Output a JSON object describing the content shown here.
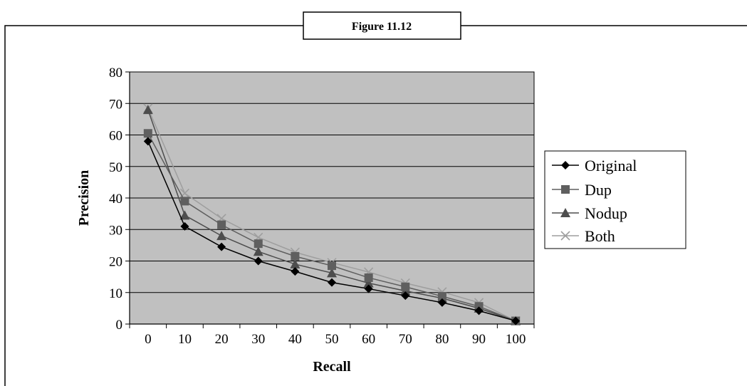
{
  "figure": {
    "caption": "Figure 11.12"
  },
  "chart_data": {
    "type": "line",
    "title": "",
    "xlabel": "Recall",
    "ylabel": "Precision",
    "x": [
      0,
      10,
      20,
      30,
      40,
      50,
      60,
      70,
      80,
      90,
      100
    ],
    "ylim": [
      0,
      80
    ],
    "yticks": [
      0,
      10,
      20,
      30,
      40,
      50,
      60,
      70,
      80
    ],
    "grid": "horizontal",
    "legend_position": "right",
    "plot_background": "#c0c0c0",
    "series": [
      {
        "name": "Original",
        "marker": "diamond",
        "color": "#000000",
        "values": [
          58,
          31,
          24.5,
          20,
          16.7,
          13.2,
          11.2,
          9,
          6.8,
          4.2,
          1
        ]
      },
      {
        "name": "Dup",
        "marker": "square",
        "color": "#5f5f5f",
        "values": [
          60.5,
          39,
          31.5,
          25.5,
          21.5,
          18.5,
          14.7,
          11.8,
          8.8,
          5.6,
          1
        ]
      },
      {
        "name": "Nodup",
        "marker": "triangle",
        "color": "#4d4d4d",
        "values": [
          68,
          34.5,
          28,
          23,
          19,
          16.2,
          13,
          10.5,
          8.2,
          5,
          1
        ]
      },
      {
        "name": "Both",
        "marker": "x",
        "color": "#9e9e9e",
        "values": [
          68.5,
          41.5,
          33.5,
          27.5,
          22.8,
          19.5,
          16.5,
          13,
          10.2,
          6.8,
          1
        ]
      }
    ]
  }
}
